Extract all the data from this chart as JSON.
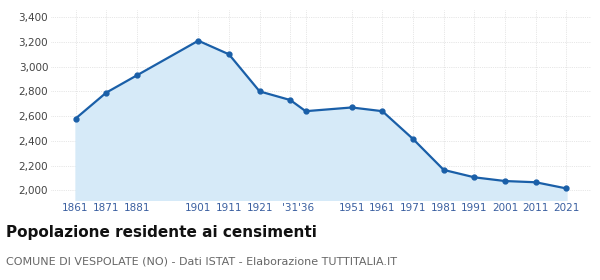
{
  "years": [
    1861,
    1871,
    1881,
    1901,
    1911,
    1921,
    1931,
    1936,
    1951,
    1961,
    1971,
    1981,
    1991,
    2001,
    2011,
    2021
  ],
  "population": [
    2580,
    2790,
    2930,
    3210,
    3100,
    2800,
    2730,
    2640,
    2670,
    2640,
    2415,
    2165,
    2105,
    2075,
    2065,
    2015
  ],
  "yticks": [
    2000,
    2200,
    2400,
    2600,
    2800,
    3000,
    3200,
    3400
  ],
  "ylim": [
    1920,
    3460
  ],
  "xlim": [
    1853,
    2029
  ],
  "x_tick_positions": [
    1861,
    1871,
    1881,
    1901,
    1911,
    1921,
    1931,
    1936,
    1951,
    1961,
    1971,
    1981,
    1991,
    2001,
    2011,
    2021
  ],
  "x_tick_labels": [
    "1861",
    "1871",
    "1881",
    "1901",
    "1911",
    "1921",
    "'31",
    "'36",
    "1951",
    "1961",
    "1971",
    "1981",
    "1991",
    "2001",
    "2011",
    "2021"
  ],
  "line_color": "#1a5fa8",
  "fill_color": "#d6eaf8",
  "marker_size": 3.5,
  "linewidth": 1.6,
  "title": "Popolazione residente ai censimenti",
  "subtitle": "COMUNE DI VESPOLATE (NO) - Dati ISTAT - Elaborazione TUTTITALIA.IT",
  "title_fontsize": 11,
  "subtitle_fontsize": 8,
  "bg_color": "#ffffff",
  "grid_color": "#d0d0d0",
  "tick_color": "#3a5fa0",
  "ytick_color": "#444444"
}
